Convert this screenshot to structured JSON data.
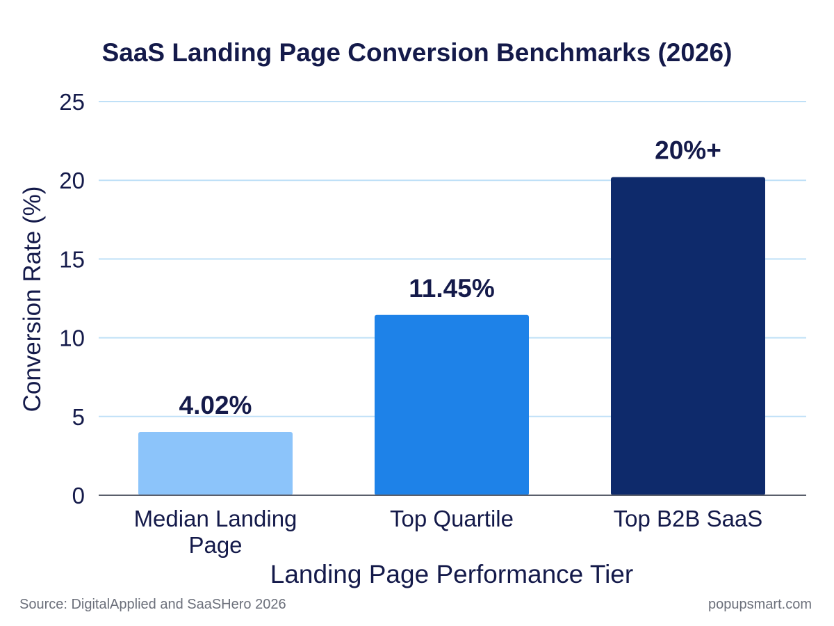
{
  "chart_data": {
    "type": "bar",
    "title": "SaaS Landing Page Conversion Benchmarks (2026)",
    "xlabel": "Landing Page Performance Tier",
    "ylabel": "Conversion Rate (%)",
    "ylim": [
      0,
      25
    ],
    "yticks": [
      0,
      5,
      10,
      15,
      20,
      25
    ],
    "grid": true,
    "categories": [
      [
        "Median Landing",
        "Page"
      ],
      [
        "Top Quartile"
      ],
      [
        "Top B2B SaaS"
      ]
    ],
    "values": [
      4.02,
      11.45,
      20.2
    ],
    "data_labels": [
      "4.02%",
      "11.45%",
      "20%+"
    ],
    "colors": [
      "#8cc4fa",
      "#1e82e8",
      "#0e2a6b"
    ]
  },
  "footer": {
    "source": "Source: DigitalApplied and SaaSHero 2026",
    "brand": "popupsmart.com"
  }
}
